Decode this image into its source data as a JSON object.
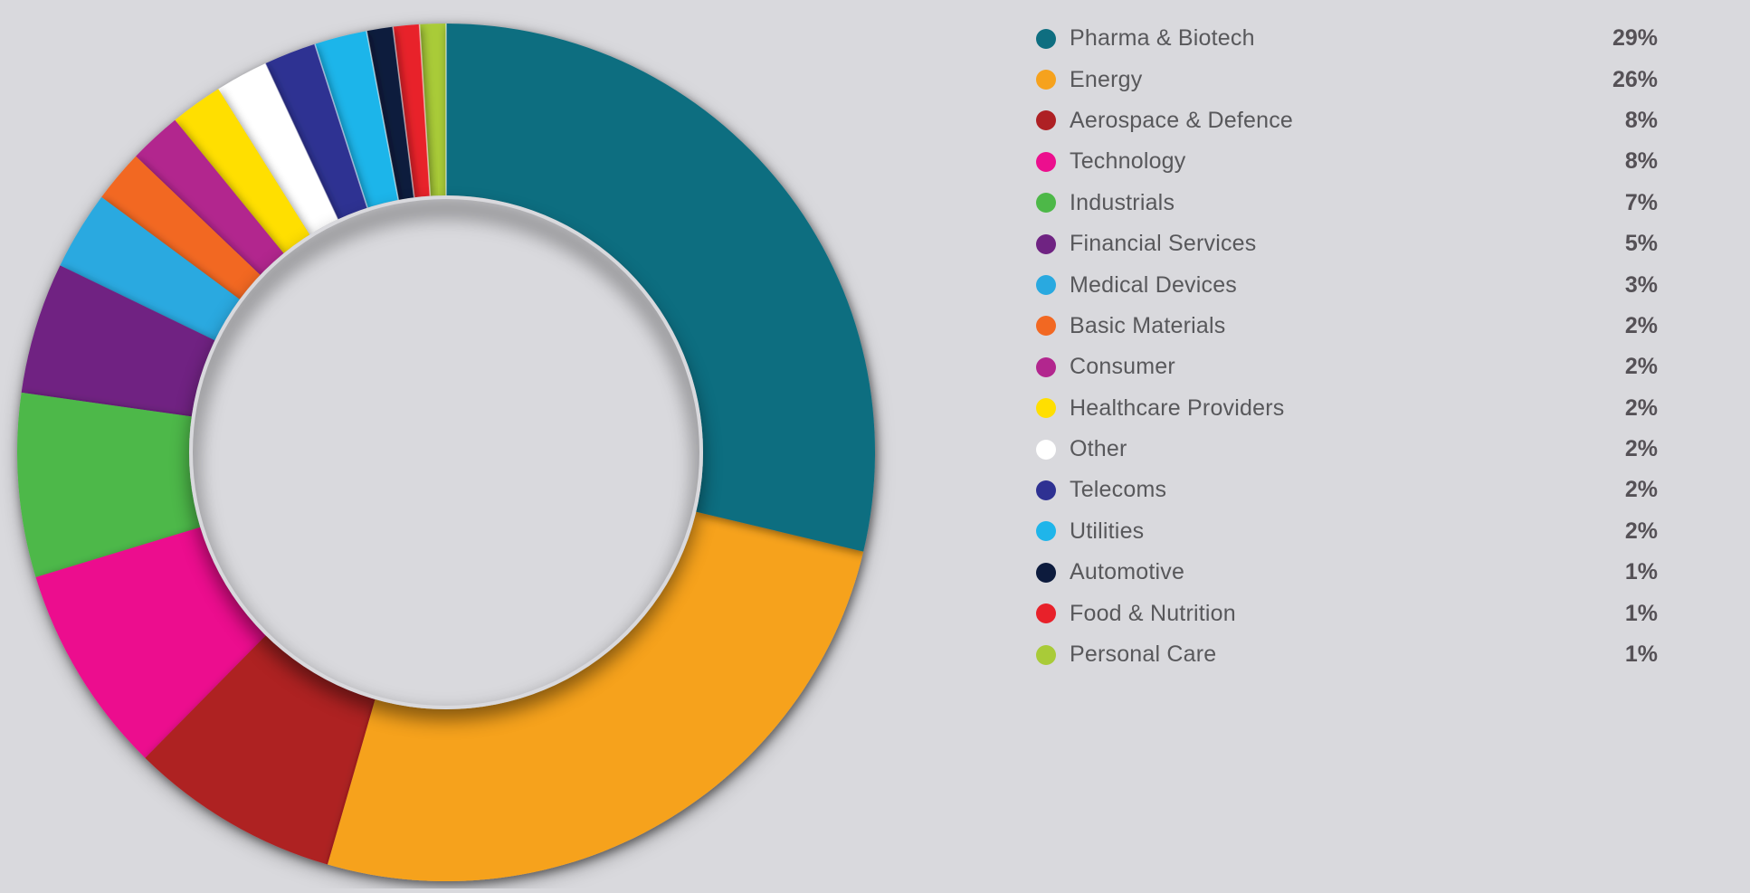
{
  "theme": {
    "background": "#d9d9dd",
    "legend_text_color": "#58585b",
    "legend_value_color": "#555156"
  },
  "chart_data": {
    "type": "pie",
    "variant": "donut",
    "title": "",
    "legend_position": "right",
    "direction": "clockwise",
    "start_angle_deg": 0,
    "inner_radius_ratio": 0.6,
    "categories": [
      "Pharma & Biotech",
      "Energy",
      "Aerospace & Defence",
      "Technology",
      "Industrials",
      "Financial Services",
      "Medical Devices",
      "Basic Materials",
      "Consumer",
      "Healthcare Providers",
      "Other",
      "Telecoms",
      "Utilities",
      "Automotive",
      "Food & Nutrition",
      "Personal Care"
    ],
    "values": [
      29,
      26,
      8,
      8,
      7,
      5,
      3,
      2,
      2,
      2,
      2,
      2,
      2,
      1,
      1,
      1
    ],
    "value_labels": [
      "29%",
      "26%",
      "8%",
      "8%",
      "7%",
      "5%",
      "3%",
      "2%",
      "2%",
      "2%",
      "2%",
      "2%",
      "2%",
      "1%",
      "1%",
      "1%"
    ],
    "colors": [
      "#0e6e80",
      "#f6a21d",
      "#ae2024",
      "#ec0f8e",
      "#4db848",
      "#6f2382",
      "#29a9e0",
      "#f26822",
      "#b2268e",
      "#ffdf00",
      "#ffffff",
      "#2e3192",
      "#1fb5ea",
      "#0d1b3d",
      "#e8212a",
      "#a9cb38"
    ]
  }
}
